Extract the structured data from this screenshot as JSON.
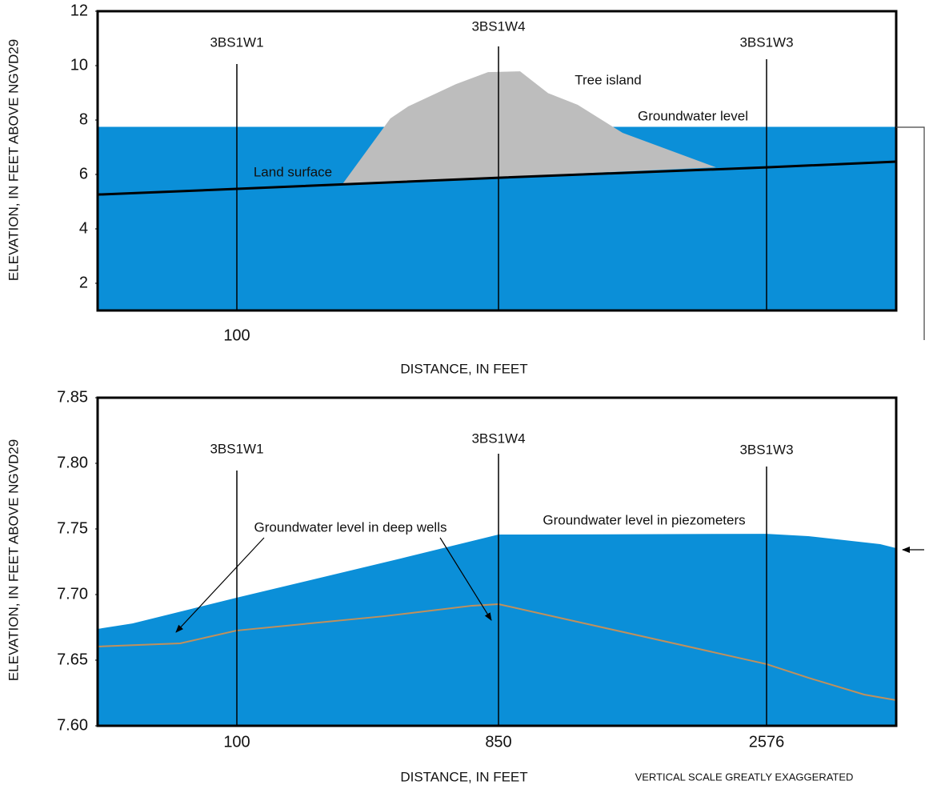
{
  "chart_data": [
    {
      "type": "area",
      "ylabel": "ELEVATION, IN FEET ABOVE NGVD29",
      "xlabel": "DISTANCE, IN FEET",
      "xlim": [
        -300,
        3410
      ],
      "xticks": [
        100
      ],
      "ylim": [
        1,
        12
      ],
      "yticks": [
        2,
        4,
        6,
        8,
        10,
        12
      ],
      "wells": [
        {
          "name": "3BS1W1",
          "x": 100
        },
        {
          "name": "3BS1W4",
          "x": 850
        },
        {
          "name": "3BS1W3",
          "x": 2576
        }
      ],
      "series": [
        {
          "name": "Groundwater level",
          "kind": "area",
          "color": "#0b8fd8",
          "x": [
            -300,
            3410
          ],
          "values": [
            7.75,
            7.75
          ]
        },
        {
          "name": "Tree island",
          "kind": "polygon",
          "color": "#bdbdbd",
          "x": [
            403,
            540,
            591,
            728,
            820,
            989,
            1169,
            1360,
            1649,
            2251
          ],
          "values": [
            5.65,
            8.06,
            8.5,
            9.32,
            9.76,
            9.79,
            8.99,
            8.56,
            7.53,
            6.26
          ]
        },
        {
          "name": "Land surface",
          "kind": "line",
          "color": "#000000",
          "x": [
            -300,
            100,
            850,
            2576,
            3410
          ],
          "values": [
            5.26,
            5.47,
            5.88,
            6.26,
            6.47
          ]
        }
      ]
    },
    {
      "type": "area",
      "ylabel": "ELEVATION, IN FEET ABOVE NGVD29",
      "xlabel": "DISTANCE, IN FEET",
      "note": "VERTICAL SCALE GREATLY EXAGGERATED",
      "xlim": [
        -300,
        3410
      ],
      "xticks": [
        100,
        850,
        2576
      ],
      "ylim": [
        7.6,
        7.85
      ],
      "yticks": [
        {
          "value": 7.6,
          "label": "7.60"
        },
        7.65,
        {
          "value": 7.7,
          "label": "7.70"
        },
        7.75,
        {
          "value": 7.8,
          "label": "7.80"
        },
        7.85
      ],
      "wells": [
        {
          "name": "3BS1W1",
          "x": 100
        },
        {
          "name": "3BS1W4",
          "x": 850
        },
        {
          "name": "3BS1W3",
          "x": 2576
        }
      ],
      "series": [
        {
          "name": "Groundwater level in piezometers",
          "kind": "area",
          "color": "#0b8fd8",
          "x": [
            -300,
            -200,
            100,
            568,
            850,
            1041,
            2576,
            2844,
            3307,
            3410
          ],
          "values": [
            7.6738,
            7.678,
            7.6976,
            7.7274,
            7.7457,
            7.7457,
            7.7463,
            7.7445,
            7.7384,
            7.7354
          ]
        },
        {
          "name": "Groundwater level in deep wells",
          "kind": "line",
          "color": "#c0905c",
          "x": [
            -300,
            -63,
            100,
            522,
            774,
            850,
            2576,
            2844,
            3204,
            3410
          ],
          "values": [
            7.6604,
            7.6628,
            7.6726,
            7.6835,
            7.6915,
            7.6927,
            7.647,
            7.6366,
            7.6238,
            7.6195
          ]
        }
      ]
    }
  ]
}
